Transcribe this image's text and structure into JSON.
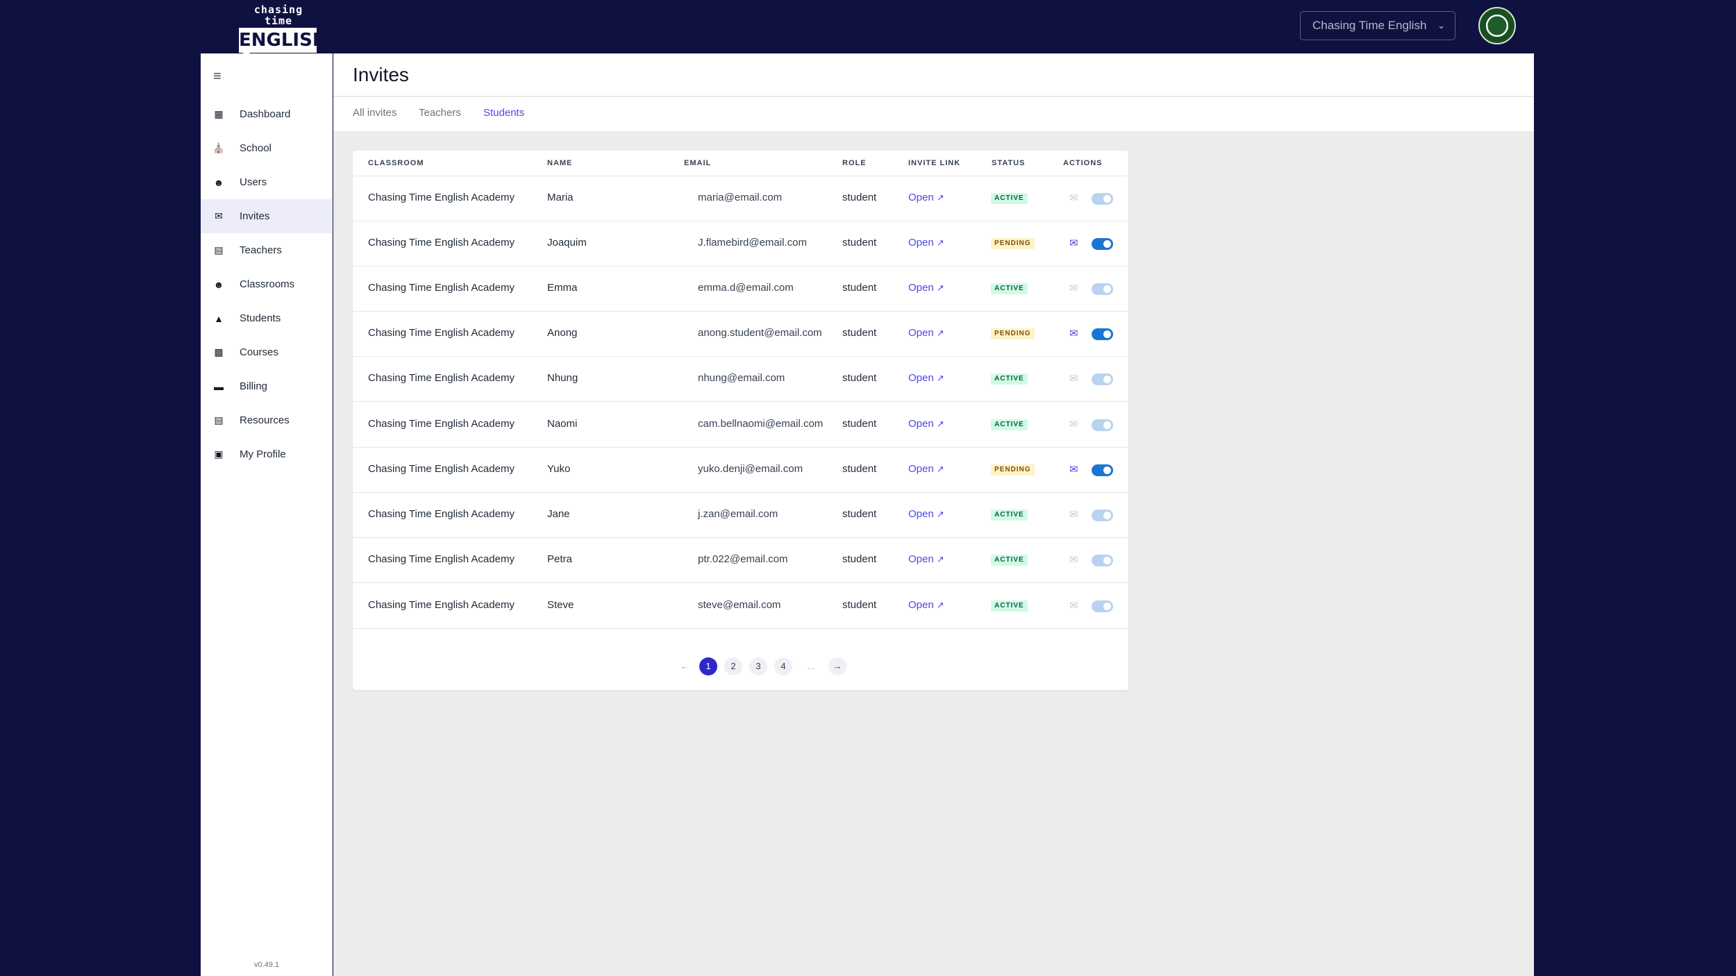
{
  "brand": {
    "line1": "chasing time",
    "line2": "ENGLISH"
  },
  "header": {
    "school_selector": "Chasing Time English"
  },
  "sidebar": {
    "items": [
      {
        "label": "Dashboard",
        "icon": "grid-icon"
      },
      {
        "label": "School",
        "icon": "school-icon"
      },
      {
        "label": "Users",
        "icon": "users-icon"
      },
      {
        "label": "Invites",
        "icon": "envelope-icon",
        "active": true
      },
      {
        "label": "Teachers",
        "icon": "chalkboard-icon"
      },
      {
        "label": "Classrooms",
        "icon": "people-icon"
      },
      {
        "label": "Students",
        "icon": "graduation-cap-icon"
      },
      {
        "label": "Courses",
        "icon": "chart-icon"
      },
      {
        "label": "Billing",
        "icon": "credit-card-icon"
      },
      {
        "label": "Resources",
        "icon": "pdf-file-icon"
      },
      {
        "label": "My Profile",
        "icon": "id-card-icon"
      }
    ],
    "version": "v0.49.1"
  },
  "page": {
    "title": "Invites"
  },
  "tabs": [
    "All invites",
    "Teachers",
    "Students"
  ],
  "active_tab": "Students",
  "table": {
    "columns": [
      "CLASSROOM",
      "NAME",
      "EMAIL",
      "ROLE",
      "INVITE LINK",
      "STATUS",
      "ACTIONS"
    ],
    "rows": [
      {
        "classroom": "Chasing Time English Academy",
        "name": "Maria",
        "email": "maria@email.com",
        "role": "student",
        "link": "Open",
        "status": "ACTIVE"
      },
      {
        "classroom": "Chasing Time English Academy",
        "name": "Joaquim",
        "email": "J.flamebird@email.com",
        "role": "student",
        "link": "Open",
        "status": "PENDING"
      },
      {
        "classroom": "Chasing Time English Academy",
        "name": "Emma",
        "email": "emma.d@email.com",
        "role": "student",
        "link": "Open",
        "status": "ACTIVE"
      },
      {
        "classroom": "Chasing Time English Academy",
        "name": "Anong",
        "email": "anong.student@email.com",
        "role": "student",
        "link": "Open",
        "status": "PENDING"
      },
      {
        "classroom": "Chasing Time English Academy",
        "name": "Nhung",
        "email": "nhung@email.com",
        "role": "student",
        "link": "Open",
        "status": "ACTIVE"
      },
      {
        "classroom": "Chasing Time English Academy",
        "name": "Naomi",
        "email": "cam.bellnaomi@email.com",
        "role": "student",
        "link": "Open",
        "status": "ACTIVE"
      },
      {
        "classroom": "Chasing Time English Academy",
        "name": "Yuko",
        "email": "yuko.denji@email.com",
        "role": "student",
        "link": "Open",
        "status": "PENDING"
      },
      {
        "classroom": "Chasing Time English Academy",
        "name": "Jane",
        "email": "j.zan@email.com",
        "role": "student",
        "link": "Open",
        "status": "ACTIVE"
      },
      {
        "classroom": "Chasing Time English Academy",
        "name": "Petra",
        "email": "ptr.022@email.com",
        "role": "student",
        "link": "Open",
        "status": "ACTIVE"
      },
      {
        "classroom": "Chasing Time English Academy",
        "name": "Steve",
        "email": "steve@email.com",
        "role": "student",
        "link": "Open",
        "status": "ACTIVE"
      }
    ]
  },
  "pagination": {
    "prev": "←",
    "pages": [
      "1",
      "2",
      "3",
      "4"
    ],
    "ellipsis": "...",
    "next": "→",
    "current": "1"
  },
  "colors": {
    "navy": "#0f1140",
    "accent": "#4f46e5",
    "toggle_on": "#1976d2"
  }
}
